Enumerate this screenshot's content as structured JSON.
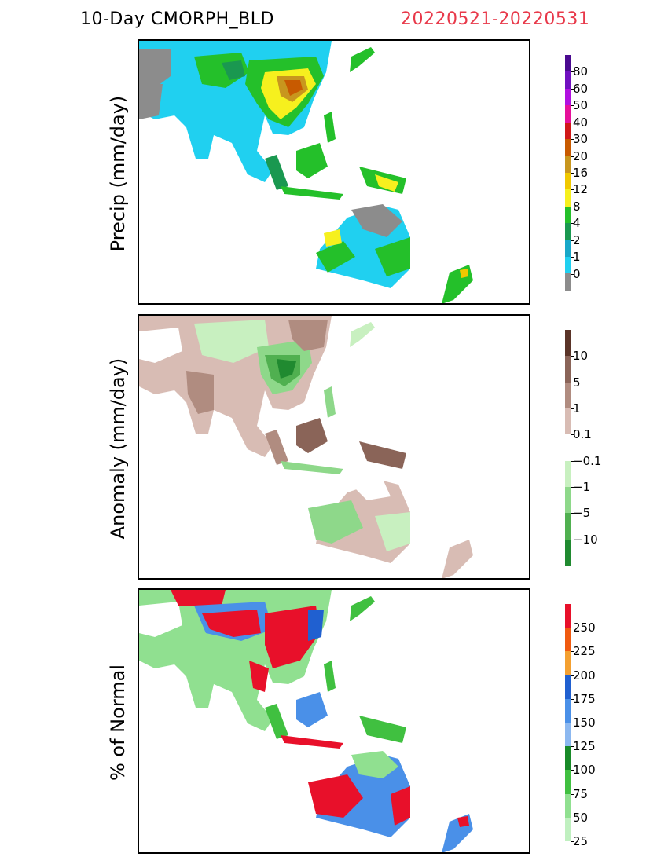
{
  "header": {
    "title": "10-Day CMORPH_BLD",
    "date_range": "20220521-20220531"
  },
  "panels": [
    {
      "id": "precip",
      "ylabel": "Precip (mm/day)",
      "colorbar": {
        "colors": [
          "#8c8c8c",
          "#20d0f0",
          "#18a8c8",
          "#1a9850",
          "#24c02a",
          "#f6f01e",
          "#f0c800",
          "#c8961e",
          "#c85a00",
          "#d01818",
          "#e6109a",
          "#b010e0",
          "#7010c0",
          "#4a0a90"
        ],
        "labels": [
          "0",
          "1",
          "2",
          "4",
          "8",
          "12",
          "16",
          "20",
          "30",
          "40",
          "50",
          "60",
          "80"
        ]
      }
    },
    {
      "id": "anomaly",
      "ylabel": "Anomaly (mm/day)",
      "colorbar": {
        "colors": [
          "#5a3428",
          "#8a6458",
          "#b08c80",
          "#d8bcb4",
          "#ffffff",
          "#c8f0c0",
          "#8ed88a",
          "#50b050",
          "#208a30"
        ],
        "labels": [
          "10",
          "5",
          "1",
          "0.1",
          "−0.1",
          "−1",
          "−5",
          "−10"
        ]
      }
    },
    {
      "id": "percent",
      "ylabel": "% of Normal",
      "colorbar": {
        "colors": [
          "#e8102a",
          "#f05a10",
          "#f4a030",
          "#2060d0",
          "#4a90e8",
          "#8cb8f0",
          "#188a28",
          "#40c040",
          "#90e090",
          "#c0f0c0"
        ],
        "labels": [
          "250",
          "225",
          "200",
          "175",
          "150",
          "125",
          "100",
          "75",
          "50",
          "25"
        ]
      }
    }
  ]
}
